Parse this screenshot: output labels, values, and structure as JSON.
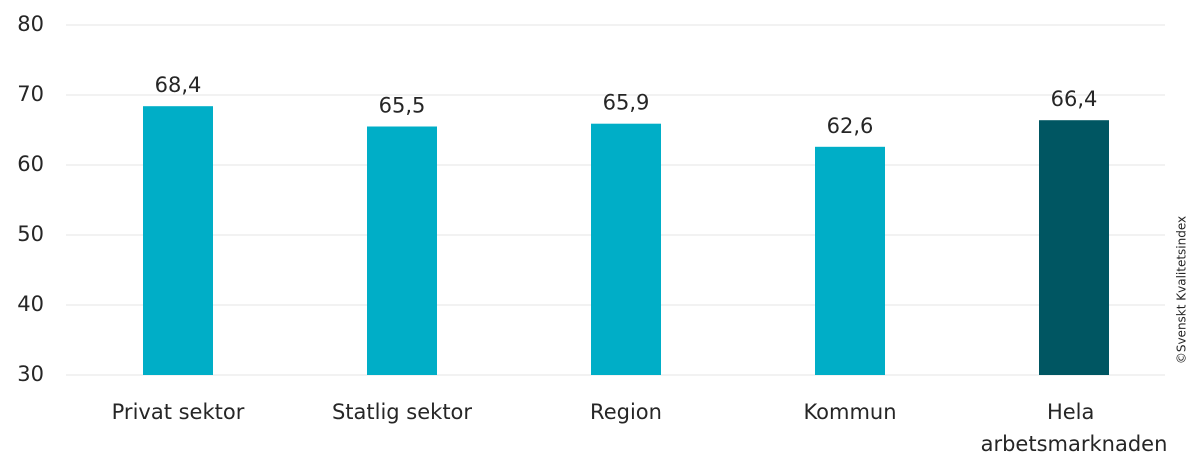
{
  "chart_data": {
    "type": "bar",
    "categories": [
      "Privat sektor",
      "Statlig sektor",
      "Region",
      "Kommun",
      "Hela arbetsmarknaden"
    ],
    "values": [
      68.4,
      65.5,
      65.9,
      62.6,
      66.4
    ],
    "value_labels": [
      "68,4",
      "65,5",
      "65,9",
      "62,6",
      "66,4"
    ],
    "colors": [
      "#00aec7",
      "#00aec7",
      "#00aec7",
      "#00aec7",
      "#005662"
    ],
    "ylim": [
      30,
      80
    ],
    "yticks": [
      30,
      40,
      50,
      60,
      70,
      80
    ],
    "grid": true,
    "source": "©Svenskt Kvalitetsindex"
  }
}
